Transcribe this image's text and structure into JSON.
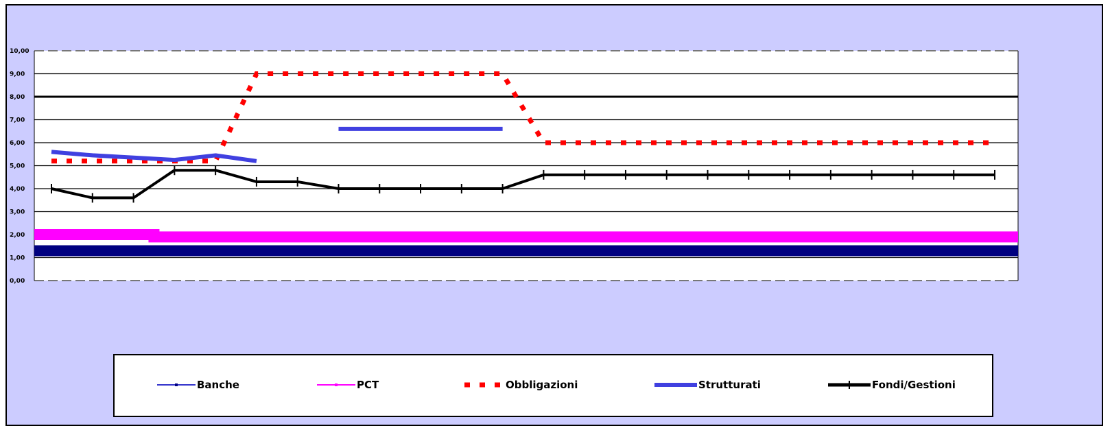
{
  "chart_data": {
    "type": "line",
    "x_tick_labels": [
      "",
      "",
      "",
      "",
      "",
      "",
      "",
      "",
      "",
      "",
      "",
      "",
      "",
      "",
      "",
      "",
      "",
      "",
      "",
      "",
      "",
      "",
      "",
      ""
    ],
    "y_tick_labels": [
      "0,00",
      "1,00",
      "2,00",
      "3,00",
      "4,00",
      "5,00",
      "6,00",
      "7,00",
      "8,00",
      "9,00",
      "10,00"
    ],
    "ylim": [
      0,
      10
    ],
    "grid": true,
    "legend": "bottom",
    "series": [
      {
        "name": "Banche",
        "color": "#000080",
        "style": "band",
        "values": [
          1.3,
          1.3,
          1.3,
          1.3,
          1.3,
          1.3,
          1.3,
          1.3,
          1.3,
          1.3,
          1.3,
          1.3,
          1.3,
          1.3,
          1.3,
          1.3,
          1.3,
          1.3,
          1.3,
          1.3,
          1.3,
          1.3,
          1.3,
          1.3
        ]
      },
      {
        "name": "PCT",
        "color": "#ff00ff",
        "style": "band",
        "values": [
          2.0,
          2.0,
          2.0,
          1.9,
          1.9,
          1.9,
          1.9,
          1.9,
          1.9,
          1.9,
          1.9,
          1.9,
          1.9,
          1.9,
          1.9,
          1.9,
          1.9,
          1.9,
          1.9,
          1.9,
          1.9,
          1.9,
          1.9,
          1.9
        ]
      },
      {
        "name": "Obbligazioni",
        "color": "#ff0000",
        "style": "dashed",
        "values": [
          5.2,
          5.2,
          5.2,
          5.2,
          5.2,
          9.0,
          9.0,
          9.0,
          9.0,
          9.0,
          9.0,
          9.0,
          6.0,
          6.0,
          6.0,
          6.0,
          6.0,
          6.0,
          6.0,
          6.0,
          6.0,
          6.0,
          6.0,
          6.0
        ]
      },
      {
        "name": "Strutturati",
        "color": "#4040e0",
        "style": "thick",
        "values": [
          5.6,
          5.45,
          5.35,
          5.25,
          5.45,
          5.2,
          null,
          6.6,
          6.6,
          6.6,
          6.6,
          6.6,
          null,
          null,
          null,
          null,
          null,
          null,
          null,
          null,
          null,
          null,
          null,
          null
        ]
      },
      {
        "name": "Fondi/Gestioni",
        "color": "#000000",
        "style": "marker",
        "values": [
          4.0,
          3.6,
          3.6,
          4.8,
          4.8,
          4.3,
          4.3,
          4.0,
          4.0,
          4.0,
          4.0,
          4.0,
          4.6,
          4.6,
          4.6,
          4.6,
          4.6,
          4.6,
          4.6,
          4.6,
          4.6,
          4.6,
          4.6,
          4.6
        ]
      }
    ]
  }
}
